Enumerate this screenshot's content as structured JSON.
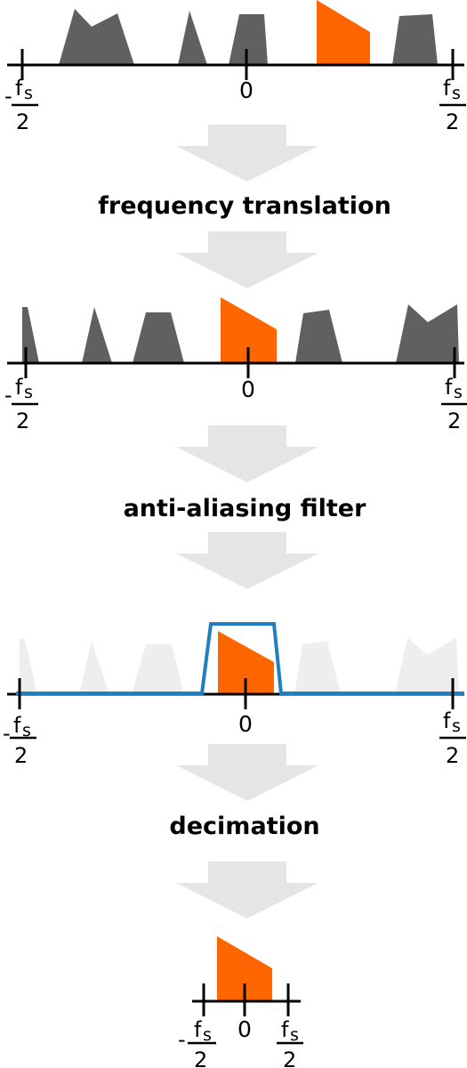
{
  "colors": {
    "signal_of_interest": "#ff6600",
    "other_signals": "#606060",
    "faded_signals": "#eeeeee",
    "filter": "#1f7fc0",
    "arrow": "#e5e5e5",
    "axis": "#000000"
  },
  "steps": {
    "translation": "frequency translation",
    "filter": "anti-aliasing filter",
    "decimation": "decimation"
  },
  "axis_labels": {
    "f": "f",
    "s": "s",
    "two": "2",
    "minus": "-",
    "zero": "0"
  }
}
